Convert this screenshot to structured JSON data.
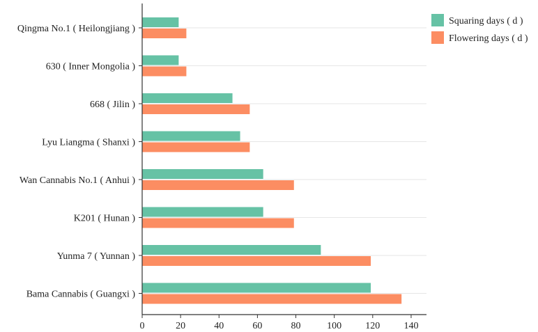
{
  "chart_data": {
    "type": "bar",
    "orientation": "horizontal",
    "categories": [
      "Qingma No.1 ( Heilongjiang )",
      "630 ( Inner Mongolia )",
      "668 ( Jilin )",
      "Lyu Liangma ( Shanxi )",
      "Wan Cannabis No.1 ( Anhui )",
      "K201 ( Hunan )",
      "Yunma 7 ( Yunnan )",
      "Bama Cannabis ( Guangxi )"
    ],
    "series": [
      {
        "name": "Squaring days ( d )",
        "color": "#66c2a5",
        "values": [
          19,
          19,
          47,
          51,
          63,
          63,
          93,
          119
        ]
      },
      {
        "name": "Flowering days ( d )",
        "color": "#fc8d62",
        "values": [
          23,
          23,
          56,
          56,
          79,
          79,
          119,
          135
        ]
      }
    ],
    "xticks": [
      "0",
      "20",
      "40",
      "60",
      "80",
      "100",
      "120",
      "140"
    ],
    "xlim": [
      0,
      148
    ],
    "title": "",
    "xlabel": "",
    "ylabel": "",
    "grid": "horizontal",
    "legend_position": "top-right"
  }
}
